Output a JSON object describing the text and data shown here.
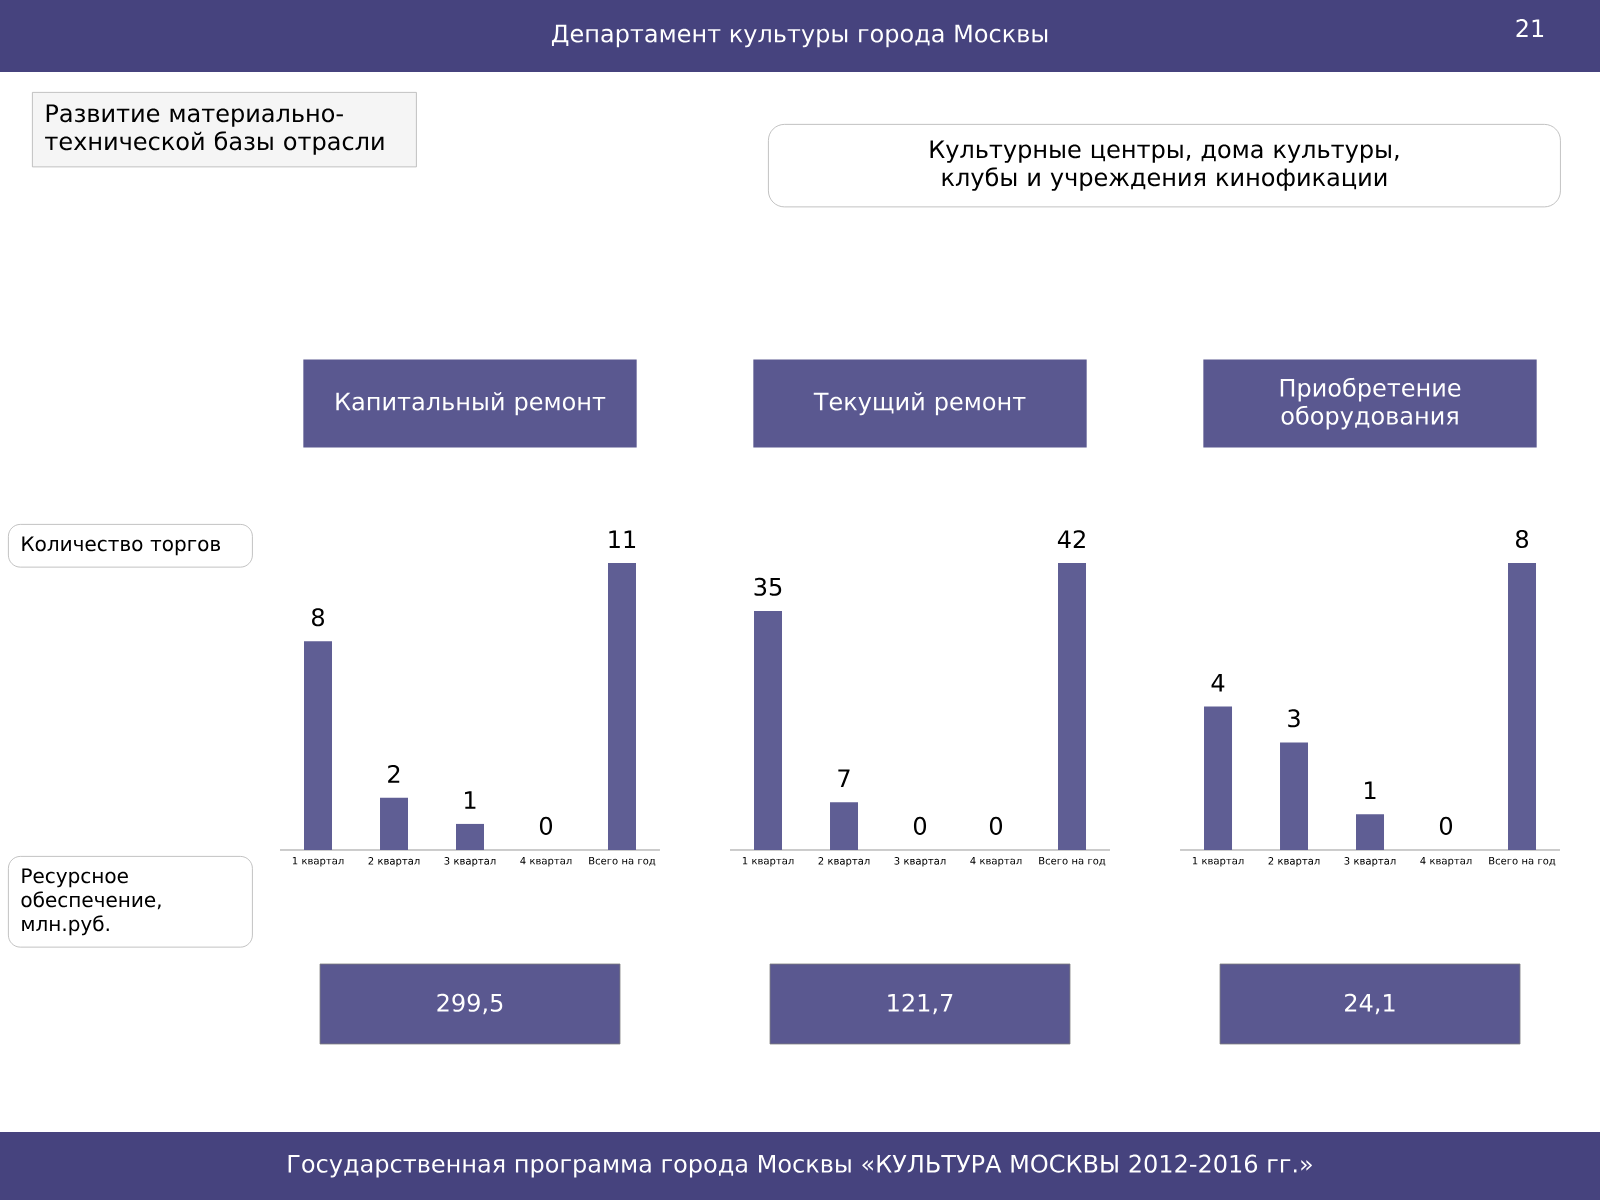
{
  "chart_data": [
    {
      "type": "bar",
      "title": "Капитальный ремонт",
      "categories": [
        "1 квартал",
        "2 квартал",
        "3 квартал",
        "4 квартал",
        "Всего на год"
      ],
      "values": [
        8,
        2,
        1,
        0,
        11
      ],
      "color": "#5f5e94",
      "data_labels": true,
      "annotations": [
        "299,5",
        "Департамент культуры города Москвы",
        "21",
        "Развитие материально-технической базы отрасли",
        "Культурные центры, дома культуры, клубы и учреждения кинофикации",
        "Количество торгов",
        "Ресурсное обеспечение, млн.руб.",
        "Государственная программа города Москвы «КУЛЬТУРА МОСКВЫ 2012-2016 гг.»"
      ]
    },
    {
      "type": "bar",
      "title": "Текущий ремонт",
      "categories": [
        "1 квартал",
        "2 квартал",
        "3 квартал",
        "4 квартал",
        "Всего на год"
      ],
      "values": [
        35,
        7,
        0,
        0,
        42
      ],
      "color": "#5f5e94",
      "data_labels": true,
      "annotations": [
        "121,7"
      ]
    },
    {
      "type": "bar",
      "title": "Приобретение оборудования",
      "categories": [
        "1 квартал",
        "2 квартал",
        "3 квартал",
        "4 квартал",
        "Всего на год"
      ],
      "values": [
        4,
        3,
        1,
        0,
        8
      ],
      "color": "#5f5e94",
      "data_labels": true,
      "annotations": [
        "24,1"
      ]
    }
  ]
}
